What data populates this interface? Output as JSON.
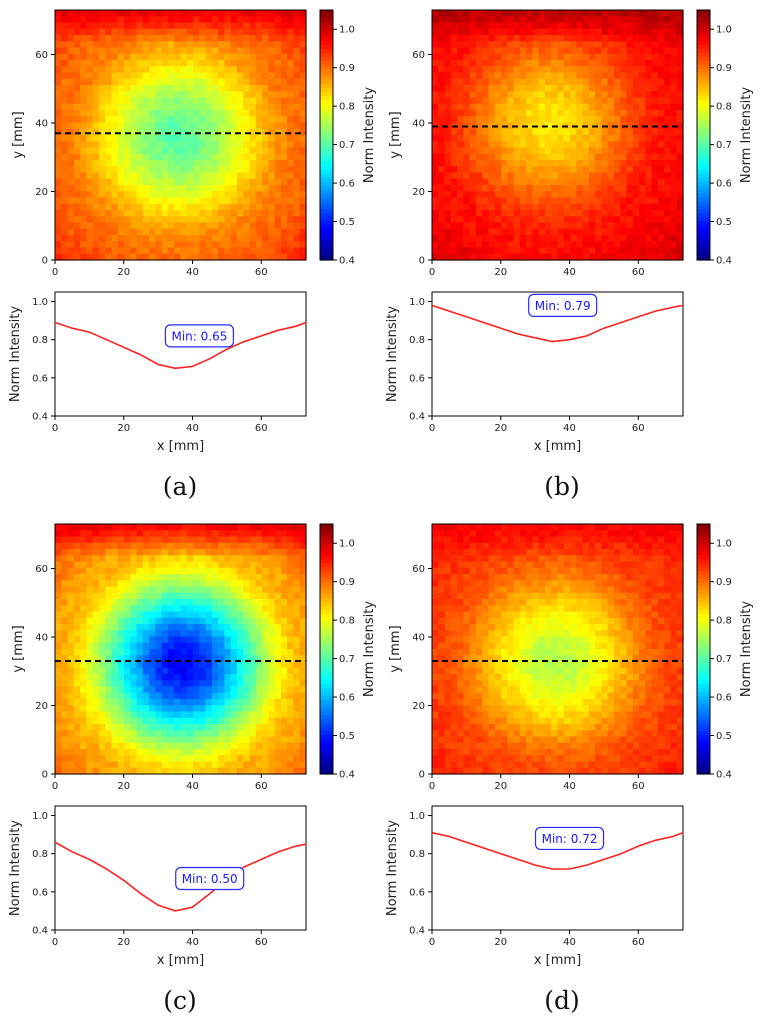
{
  "chart_data": [
    {
      "panel": "(a)",
      "type": "heatmap",
      "heatmap": {
        "xlim": [
          0,
          73
        ],
        "ylim": [
          0,
          73
        ],
        "xticks": [
          0,
          20,
          40,
          60
        ],
        "yticks": [
          0,
          20,
          40,
          60
        ],
        "xlabel": "",
        "ylabel": "y [mm]",
        "center": [
          36,
          36
        ],
        "center_value": 0.7,
        "edge_value": 0.9,
        "corner_value": 0.95,
        "top_value": 1.0,
        "line_y": 37
      },
      "colorbar": {
        "label": "Norm Intensity",
        "range": [
          0.4,
          1.05
        ],
        "ticks": [
          "0.4",
          "0.5",
          "0.6",
          "0.7",
          "0.8",
          "0.9",
          "1.0"
        ]
      },
      "profile": {
        "type": "line",
        "xlabel": "x [mm]",
        "ylabel": "Norm Intensity",
        "xlim": [
          0,
          73
        ],
        "ylim": [
          0.4,
          1.05
        ],
        "xticks": [
          0,
          20,
          40,
          60
        ],
        "yticks": [
          "0.4",
          "0.6",
          "0.8",
          "1.0"
        ],
        "x": [
          0,
          5,
          10,
          15,
          20,
          25,
          30,
          35,
          40,
          45,
          50,
          55,
          60,
          65,
          70,
          73
        ],
        "y": [
          0.89,
          0.86,
          0.84,
          0.8,
          0.76,
          0.72,
          0.67,
          0.65,
          0.66,
          0.7,
          0.75,
          0.79,
          0.82,
          0.85,
          0.87,
          0.89
        ],
        "annotation": "Min: 0.65",
        "annotation_x": 42,
        "annotation_y": 0.82
      }
    },
    {
      "panel": "(b)",
      "type": "heatmap",
      "heatmap": {
        "xlim": [
          0,
          73
        ],
        "ylim": [
          0,
          73
        ],
        "xticks": [
          0,
          20,
          40,
          60
        ],
        "yticks": [
          0,
          20,
          40,
          60
        ],
        "xlabel": "",
        "ylabel": "y [mm]",
        "center": [
          34,
          40
        ],
        "center_value": 0.82,
        "edge_value": 0.96,
        "corner_value": 0.99,
        "top_value": 1.03,
        "line_y": 39
      },
      "colorbar": {
        "label": "Norm Intensity",
        "range": [
          0.4,
          1.05
        ],
        "ticks": [
          "0.4",
          "0.5",
          "0.6",
          "0.7",
          "0.8",
          "0.9",
          "1.0"
        ]
      },
      "profile": {
        "type": "line",
        "xlabel": "x [mm]",
        "ylabel": "Norm Intensity",
        "xlim": [
          0,
          73
        ],
        "ylim": [
          0.4,
          1.05
        ],
        "xticks": [
          0,
          20,
          40,
          60
        ],
        "yticks": [
          "0.4",
          "0.6",
          "0.8",
          "1.0"
        ],
        "x": [
          0,
          5,
          10,
          15,
          20,
          25,
          30,
          35,
          40,
          45,
          50,
          55,
          60,
          65,
          70,
          73
        ],
        "y": [
          0.98,
          0.95,
          0.92,
          0.89,
          0.86,
          0.83,
          0.81,
          0.79,
          0.8,
          0.82,
          0.86,
          0.89,
          0.92,
          0.95,
          0.97,
          0.98
        ],
        "annotation": "Min: 0.79",
        "annotation_x": 38,
        "annotation_y": 0.98
      }
    },
    {
      "panel": "(c)",
      "type": "heatmap",
      "heatmap": {
        "xlim": [
          0,
          73
        ],
        "ylim": [
          0,
          73
        ],
        "xticks": [
          0,
          20,
          40,
          60
        ],
        "yticks": [
          0,
          20,
          40,
          60
        ],
        "xlabel": "",
        "ylabel": "y [mm]",
        "center": [
          37,
          32
        ],
        "center_value": 0.48,
        "edge_value": 0.86,
        "corner_value": 0.92,
        "top_value": 1.0,
        "line_y": 33
      },
      "colorbar": {
        "label": "Norm Intensity",
        "range": [
          0.4,
          1.05
        ],
        "ticks": [
          "0.4",
          "0.5",
          "0.6",
          "0.7",
          "0.8",
          "0.9",
          "1.0"
        ]
      },
      "profile": {
        "type": "line",
        "xlabel": "x [mm]",
        "ylabel": "Norm Intensity",
        "xlim": [
          0,
          73
        ],
        "ylim": [
          0.4,
          1.05
        ],
        "xticks": [
          0,
          20,
          40,
          60
        ],
        "yticks": [
          "0.4",
          "0.6",
          "0.8",
          "1.0"
        ],
        "x": [
          0,
          5,
          10,
          15,
          20,
          25,
          30,
          35,
          40,
          45,
          50,
          55,
          60,
          65,
          70,
          73
        ],
        "y": [
          0.86,
          0.81,
          0.77,
          0.72,
          0.66,
          0.59,
          0.53,
          0.5,
          0.52,
          0.59,
          0.67,
          0.73,
          0.77,
          0.81,
          0.84,
          0.85
        ],
        "annotation": "Min: 0.50",
        "annotation_x": 45,
        "annotation_y": 0.67
      }
    },
    {
      "panel": "(d)",
      "type": "heatmap",
      "heatmap": {
        "xlim": [
          0,
          73
        ],
        "ylim": [
          0,
          73
        ],
        "xticks": [
          0,
          20,
          40,
          60
        ],
        "yticks": [
          0,
          20,
          40,
          60
        ],
        "xlabel": "",
        "ylabel": "y [mm]",
        "center": [
          36,
          33
        ],
        "center_value": 0.76,
        "edge_value": 0.93,
        "corner_value": 0.96,
        "top_value": 0.98,
        "line_y": 33
      },
      "colorbar": {
        "label": "Norm Intensity",
        "range": [
          0.4,
          1.05
        ],
        "ticks": [
          "0.4",
          "0.5",
          "0.6",
          "0.7",
          "0.8",
          "0.9",
          "1.0"
        ]
      },
      "profile": {
        "type": "line",
        "xlabel": "x [mm]",
        "ylabel": "Norm Intensity",
        "xlim": [
          0,
          73
        ],
        "ylim": [
          0.4,
          1.05
        ],
        "xticks": [
          0,
          20,
          40,
          60
        ],
        "yticks": [
          "0.4",
          "0.6",
          "0.8",
          "1.0"
        ],
        "x": [
          0,
          5,
          10,
          15,
          20,
          25,
          30,
          35,
          40,
          45,
          50,
          55,
          60,
          65,
          70,
          73
        ],
        "y": [
          0.91,
          0.89,
          0.86,
          0.83,
          0.8,
          0.77,
          0.74,
          0.72,
          0.72,
          0.74,
          0.77,
          0.8,
          0.84,
          0.87,
          0.89,
          0.91
        ],
        "annotation": "Min: 0.72",
        "annotation_x": 40,
        "annotation_y": 0.88
      }
    }
  ]
}
